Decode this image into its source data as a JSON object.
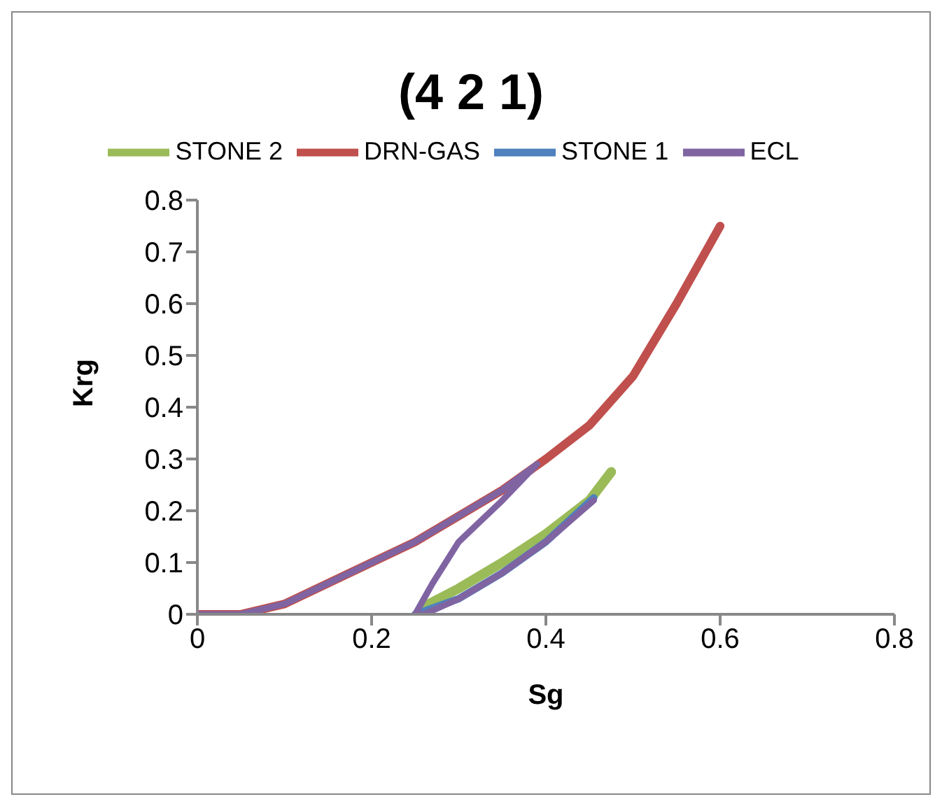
{
  "chart_data": {
    "type": "line",
    "title": "(4 2 1)",
    "xlabel": "Sg",
    "ylabel": "Krg",
    "xlim": [
      0,
      0.8
    ],
    "xticks": [
      0,
      0.2,
      0.4,
      0.6,
      0.8
    ],
    "ylim": [
      0,
      0.8
    ],
    "yticks": [
      0,
      0.1,
      0.2,
      0.3,
      0.4,
      0.5,
      0.6,
      0.7,
      0.8
    ],
    "grid": false,
    "legend": "top",
    "marker": "none",
    "line_style": "solid",
    "series": [
      {
        "name": "STONE 2",
        "color": "#9bbb59",
        "x": [
          0.26,
          0.3,
          0.35,
          0.4,
          0.45,
          0.475
        ],
        "values": [
          0.015,
          0.05,
          0.1,
          0.155,
          0.22,
          0.275
        ]
      },
      {
        "name": "DRN-GAS",
        "color": "#c0504d",
        "x": [
          0,
          0.05,
          0.1,
          0.2,
          0.25,
          0.3,
          0.35,
          0.4,
          0.45,
          0.5,
          0.55,
          0.6
        ],
        "values": [
          0,
          0,
          0.02,
          0.1,
          0.14,
          0.19,
          0.24,
          0.3,
          0.365,
          0.46,
          0.6,
          0.75
        ]
      },
      {
        "name": "STONE 1",
        "color": "#4f81bd",
        "x": [
          0.25,
          0.3,
          0.35,
          0.4,
          0.455
        ],
        "values": [
          0,
          0.03,
          0.08,
          0.14,
          0.225
        ]
      },
      {
        "name": "ECL",
        "color": "#8064a2",
        "x": [
          0,
          0.05,
          0.1,
          0.15,
          0.2,
          0.25,
          0.3,
          0.35,
          0.39,
          0.35,
          0.3,
          0.27,
          0.26,
          0.25,
          0.26,
          0.3,
          0.35,
          0.4,
          0.455
        ],
        "values": [
          0,
          0,
          0.02,
          0.06,
          0.1,
          0.14,
          0.19,
          0.24,
          0.29,
          0.22,
          0.14,
          0.06,
          0.03,
          0,
          0,
          0.03,
          0.08,
          0.14,
          0.22
        ]
      }
    ]
  }
}
